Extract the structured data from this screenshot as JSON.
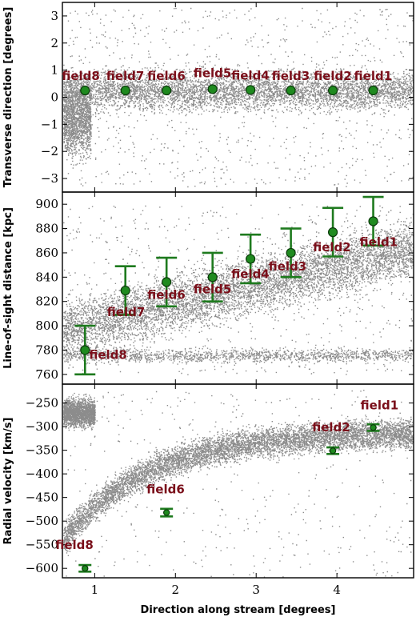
{
  "chart_data": [
    {
      "type": "scatter",
      "panel": "top",
      "ylabel": "Transverse direction [degrees]",
      "xlabel": "",
      "xlim": [
        0.6,
        4.95
      ],
      "ylim": [
        -3.5,
        3.5
      ],
      "yticks": [
        -3,
        -2,
        -1,
        0,
        1,
        2,
        3
      ],
      "yticklabels": [
        "−3",
        "−2",
        "−1",
        "0",
        "1",
        "2",
        "3"
      ],
      "points": [
        {
          "label": "field8",
          "x": 0.88,
          "y": 0.25,
          "err": null
        },
        {
          "label": "field7",
          "x": 1.38,
          "y": 0.25,
          "err": null
        },
        {
          "label": "field6",
          "x": 1.89,
          "y": 0.25,
          "err": null
        },
        {
          "label": "field5",
          "x": 2.46,
          "y": 0.3,
          "err": null
        },
        {
          "label": "field4",
          "x": 2.93,
          "y": 0.27,
          "err": null
        },
        {
          "label": "field3",
          "x": 3.43,
          "y": 0.25,
          "err": null
        },
        {
          "label": "field2",
          "x": 3.95,
          "y": 0.25,
          "err": null
        },
        {
          "label": "field1",
          "x": 4.45,
          "y": 0.25,
          "err": null
        }
      ]
    },
    {
      "type": "scatter",
      "panel": "middle",
      "ylabel": "Line-of-sight distance [kpc]",
      "xlabel": "",
      "xlim": [
        0.6,
        4.95
      ],
      "ylim": [
        752,
        910
      ],
      "yticks": [
        760,
        780,
        800,
        820,
        840,
        860,
        880,
        900
      ],
      "yticklabels": [
        "760",
        "780",
        "800",
        "820",
        "840",
        "860",
        "880",
        "900"
      ],
      "points": [
        {
          "label": "field8",
          "x": 0.88,
          "y": 780,
          "err": 20
        },
        {
          "label": "field7",
          "x": 1.38,
          "y": 829,
          "err": 20
        },
        {
          "label": "field6",
          "x": 1.89,
          "y": 836,
          "err": 20
        },
        {
          "label": "field5",
          "x": 2.46,
          "y": 840,
          "err": 20
        },
        {
          "label": "field4",
          "x": 2.93,
          "y": 855,
          "err": 20
        },
        {
          "label": "field3",
          "x": 3.43,
          "y": 860,
          "err": 20
        },
        {
          "label": "field2",
          "x": 3.95,
          "y": 877,
          "err": 20
        },
        {
          "label": "field1",
          "x": 4.45,
          "y": 886,
          "err": 20
        }
      ]
    },
    {
      "type": "scatter",
      "panel": "bottom",
      "ylabel": "Radial velocity [km/s]",
      "xlabel": "Direction along stream [degrees]",
      "xlim": [
        0.6,
        4.95
      ],
      "ylim": [
        -620,
        -210
      ],
      "xticks": [
        1,
        2,
        3,
        4
      ],
      "xticklabels": [
        "1",
        "2",
        "3",
        "4"
      ],
      "yticks": [
        -600,
        -550,
        -500,
        -450,
        -400,
        -350,
        -300,
        -250
      ],
      "yticklabels": [
        "−600",
        "−550",
        "−500",
        "−450",
        "−400",
        "−350",
        "−300",
        "−250"
      ],
      "points": [
        {
          "label": "field8",
          "x": 0.88,
          "y": -600,
          "err": 7
        },
        {
          "label": "field6",
          "x": 1.89,
          "y": -482,
          "err": 8
        },
        {
          "label": "field2",
          "x": 3.95,
          "y": -351,
          "err": 7
        },
        {
          "label": "field1",
          "x": 4.45,
          "y": -302,
          "err": 7
        }
      ]
    }
  ]
}
